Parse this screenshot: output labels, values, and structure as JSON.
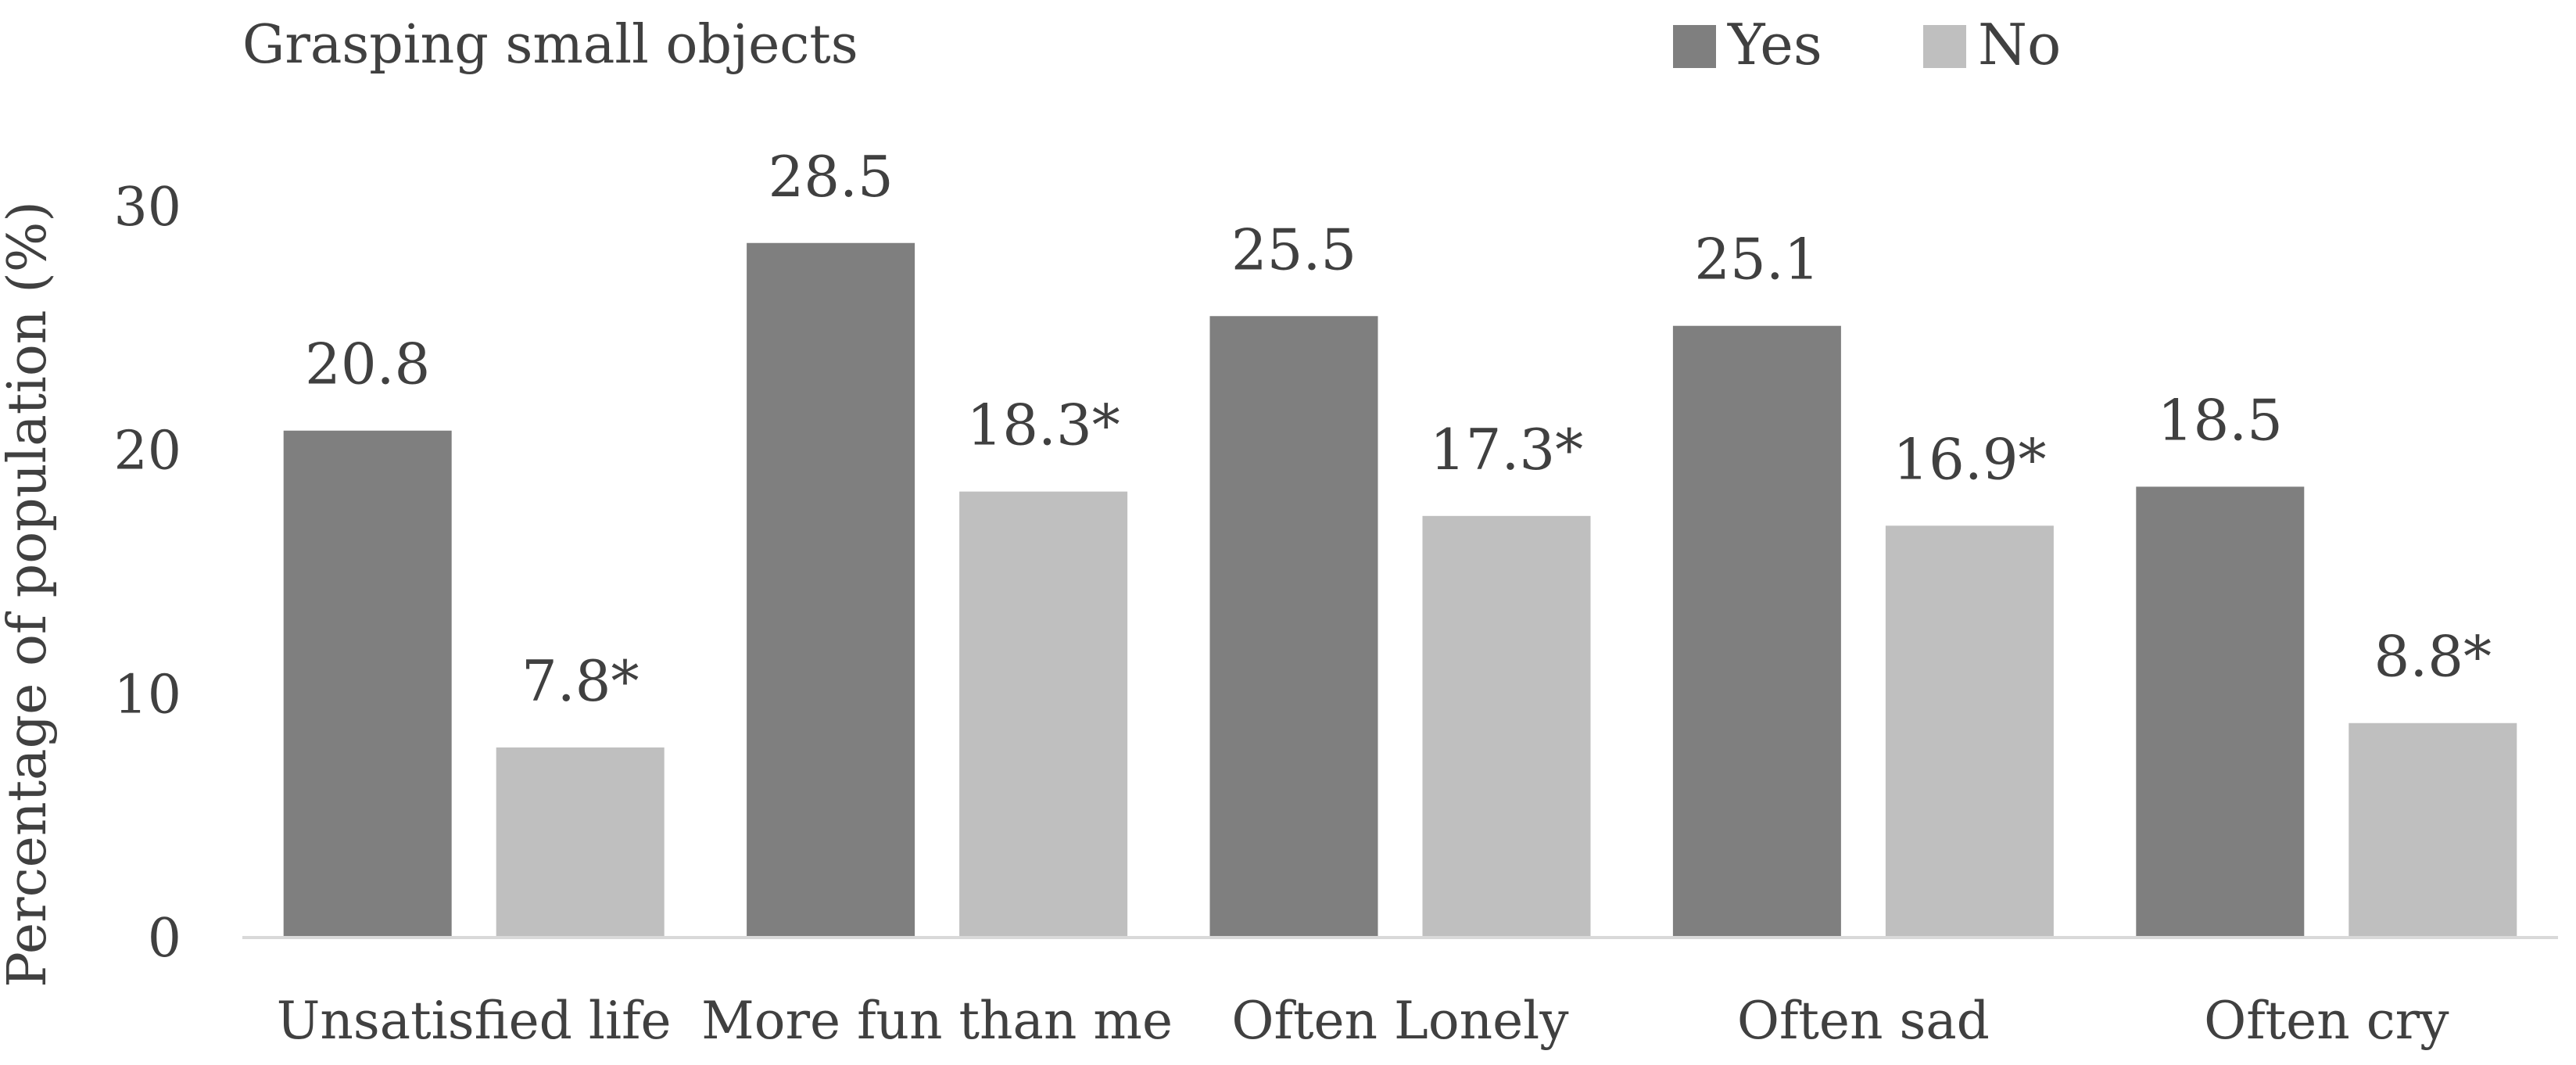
{
  "chart_data": {
    "type": "bar",
    "title": "Grasping small objects",
    "ylabel": "Percentage of population (%)",
    "xlabel": "",
    "categories": [
      "Unsatisfied life",
      "More fun than me",
      "Often Lonely",
      "Often sad",
      "Often cry"
    ],
    "series": [
      {
        "name": "Yes",
        "color": "#7f7f7f",
        "values": [
          20.8,
          28.5,
          25.5,
          25.1,
          18.5
        ],
        "labels": [
          "20.8",
          "28.5",
          "25.5",
          "25.1",
          "18.5"
        ]
      },
      {
        "name": "No",
        "color": "#bfbfbf",
        "values": [
          7.8,
          18.3,
          17.3,
          16.9,
          8.8
        ],
        "labels": [
          "7.8*",
          "18.3*",
          "17.3*",
          "16.9*",
          "8.8*"
        ]
      }
    ],
    "ylim": [
      0,
      30
    ],
    "yticks": [
      "0",
      "10",
      "20",
      "30"
    ],
    "grid": false,
    "legend_position": "top"
  }
}
